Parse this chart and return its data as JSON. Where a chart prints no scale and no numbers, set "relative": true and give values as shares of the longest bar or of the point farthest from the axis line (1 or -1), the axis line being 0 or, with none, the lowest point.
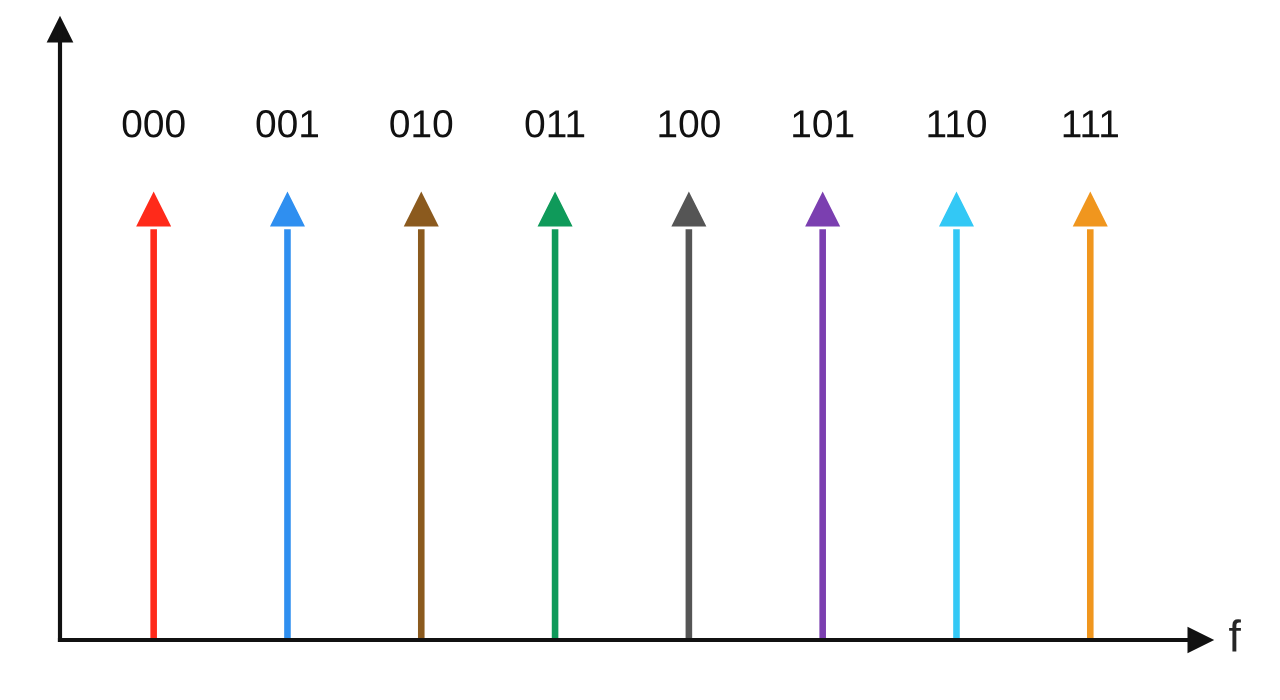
{
  "chart_data": {
    "type": "bar",
    "relative": true,
    "xlabel": "f",
    "marker": "triangle",
    "line_style": "solid",
    "categories": [
      "000",
      "001",
      "010",
      "011",
      "100",
      "101",
      "110",
      "111"
    ],
    "values": [
      1,
      1,
      1,
      1,
      1,
      1,
      1,
      1
    ],
    "colors": [
      "#ff2a1a",
      "#2f8ff0",
      "#8b5a1e",
      "#0f9a5a",
      "#555555",
      "#7b3fb0",
      "#33c8f5",
      "#f0961e"
    ]
  }
}
